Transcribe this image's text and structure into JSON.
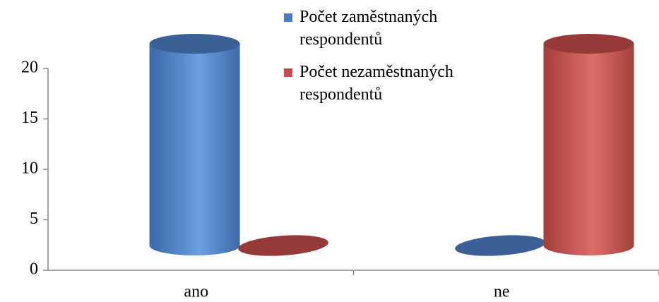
{
  "chart_data": {
    "type": "bar",
    "categories": [
      "ano",
      "ne"
    ],
    "series": [
      {
        "name": "Počet zaměstnaných respondentů",
        "color": "#4a7ec4",
        "values": [
          20,
          0
        ]
      },
      {
        "name": "Počet nezaměstnaných respondentů",
        "color": "#c0504d",
        "values": [
          0,
          20
        ]
      }
    ],
    "ylim": [
      0,
      20
    ],
    "yticks": [
      0,
      5,
      10,
      15,
      20
    ]
  }
}
